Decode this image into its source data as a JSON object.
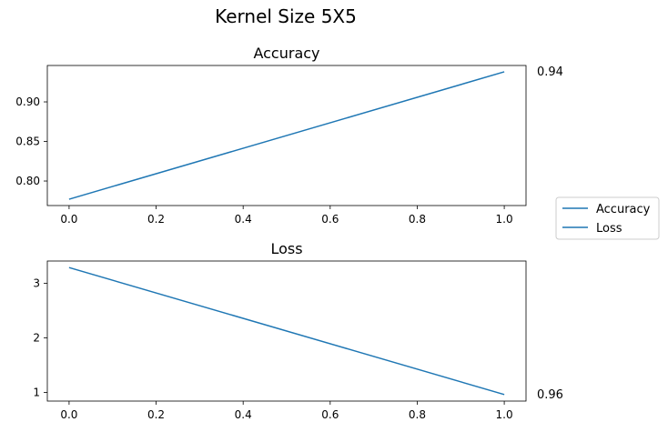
{
  "figure": {
    "suptitle": "Kernel Size 5X5"
  },
  "chart_data": [
    {
      "type": "line",
      "title": "Accuracy",
      "xlabel": "",
      "ylabel": "",
      "x": [
        0.0,
        1.0
      ],
      "series": [
        {
          "name": "Accuracy",
          "values": [
            0.777,
            0.938
          ],
          "color": "#1f77b4"
        }
      ],
      "xlim": [
        -0.05,
        1.05
      ],
      "ylim": [
        0.769,
        0.946
      ],
      "xticks": [
        0.0,
        0.2,
        0.4,
        0.6,
        0.8,
        1.0
      ],
      "xtick_labels": [
        "0.0",
        "0.2",
        "0.4",
        "0.6",
        "0.8",
        "1.0"
      ],
      "yticks": [
        0.8,
        0.85,
        0.9
      ],
      "ytick_labels": [
        "0.80",
        "0.85",
        "0.90"
      ],
      "grid": false,
      "annotation": "0.94"
    },
    {
      "type": "line",
      "title": "Loss",
      "xlabel": "",
      "ylabel": "",
      "x": [
        0.0,
        1.0
      ],
      "series": [
        {
          "name": "Loss",
          "values": [
            3.29,
            0.96
          ],
          "color": "#1f77b4"
        }
      ],
      "xlim": [
        -0.05,
        1.05
      ],
      "ylim": [
        0.84,
        3.41
      ],
      "xticks": [
        0.0,
        0.2,
        0.4,
        0.6,
        0.8,
        1.0
      ],
      "xtick_labels": [
        "0.0",
        "0.2",
        "0.4",
        "0.6",
        "0.8",
        "1.0"
      ],
      "yticks": [
        1,
        2,
        3
      ],
      "ytick_labels": [
        "1",
        "2",
        "3"
      ],
      "grid": false,
      "annotation": "0.96"
    }
  ],
  "legend": {
    "placement": "right",
    "entries": [
      {
        "label": "Accuracy",
        "color": "#1f77b4"
      },
      {
        "label": "Loss",
        "color": "#1f77b4"
      }
    ]
  }
}
